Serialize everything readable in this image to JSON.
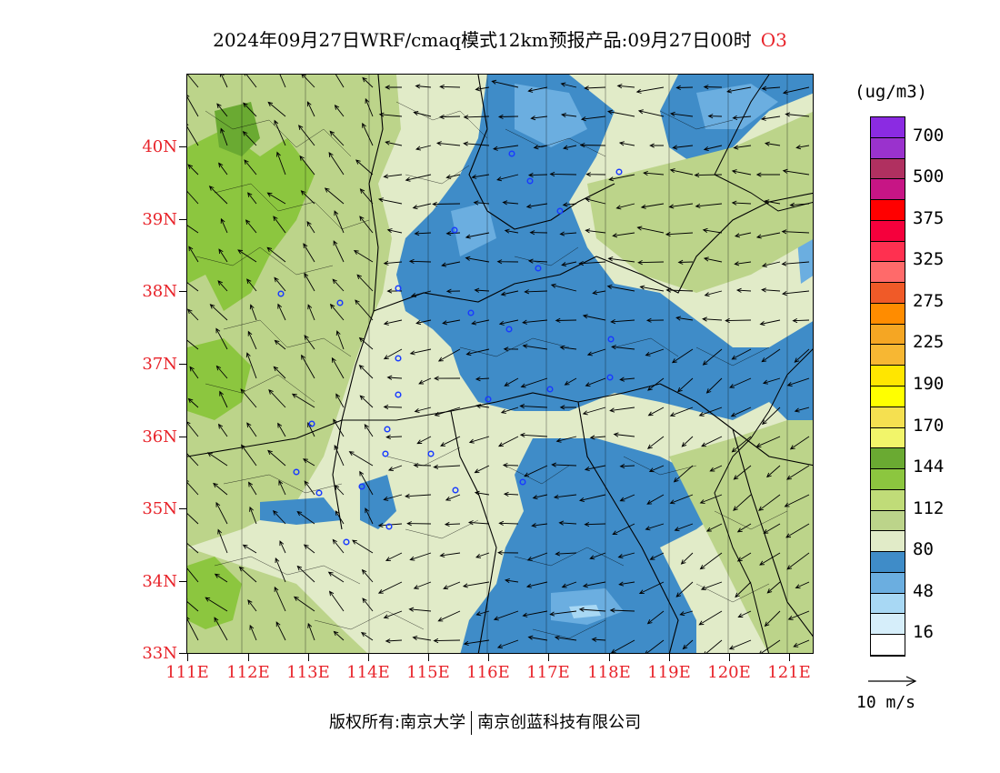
{
  "title": {
    "main": "2024年09月27日WRF/cmaq模式12km预报产品:09月27日00时",
    "product": "O3"
  },
  "map": {
    "lat_labels": [
      "40N",
      "39N",
      "38N",
      "37N",
      "36N",
      "35N",
      "34N",
      "33N"
    ],
    "lon_labels": [
      "111E",
      "112E",
      "113E",
      "114E",
      "115E",
      "116E",
      "117E",
      "118E",
      "119E",
      "120E",
      "121E"
    ],
    "lat_range": [
      33,
      41
    ],
    "lon_range": [
      111,
      121.4
    ],
    "wind_field": "southwesterly-to-northerly vectors over domain",
    "stations_marker_color": "#1a3cff"
  },
  "legend": {
    "unit": "(ug/m3)",
    "bins": [
      {
        "label": "700",
        "color": "#8b2be2"
      },
      {
        "label": "",
        "color": "#9a32cd"
      },
      {
        "label": "500",
        "color": "#b03060"
      },
      {
        "label": "",
        "color": "#c71585"
      },
      {
        "label": "375",
        "color": "#ff0000"
      },
      {
        "label": "",
        "color": "#f5003c"
      },
      {
        "label": "325",
        "color": "#ff3050"
      },
      {
        "label": "",
        "color": "#ff6a6a"
      },
      {
        "label": "275",
        "color": "#f05a28"
      },
      {
        "label": "",
        "color": "#ff8c00"
      },
      {
        "label": "225",
        "color": "#f5a623"
      },
      {
        "label": "",
        "color": "#f7b733"
      },
      {
        "label": "190",
        "color": "#ffe600"
      },
      {
        "label": "",
        "color": "#ffff00"
      },
      {
        "label": "170",
        "color": "#f5e050"
      },
      {
        "label": "",
        "color": "#f2f56a"
      },
      {
        "label": "144",
        "color": "#6aaa32"
      },
      {
        "label": "",
        "color": "#8cc63f"
      },
      {
        "label": "112",
        "color": "#c0dc78"
      },
      {
        "label": "",
        "color": "#bcd48a"
      },
      {
        "label": "80",
        "color": "#e1ebc8"
      },
      {
        "label": "",
        "color": "#3f8cc8"
      },
      {
        "label": "48",
        "color": "#6baee0"
      },
      {
        "label": "",
        "color": "#a8d8f4"
      },
      {
        "label": "16",
        "color": "#d6eefa"
      },
      {
        "label": "",
        "color": "#ffffff"
      }
    ]
  },
  "vector_key": {
    "label": "10 m/s"
  },
  "footer": {
    "left": "版权所有:南京大学",
    "right": "南京创蓝科技有限公司"
  }
}
